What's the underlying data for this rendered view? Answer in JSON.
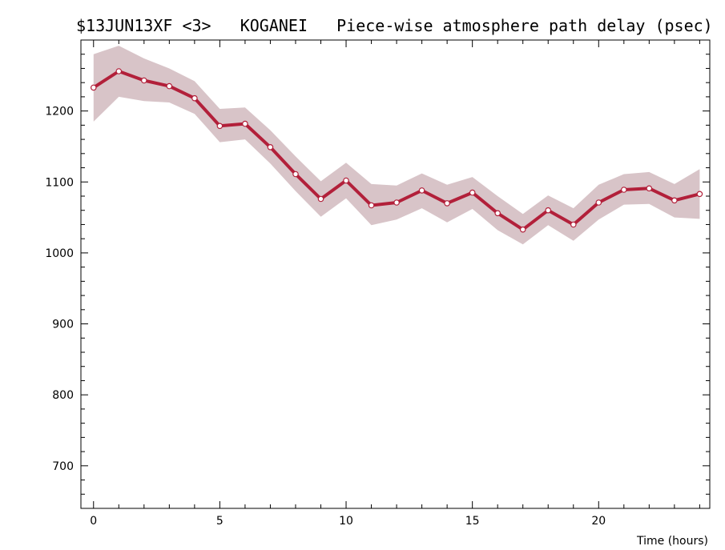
{
  "chart_data": {
    "type": "line",
    "title": "$13JUN13XF <3>   KOGANEI   Piece-wise atmosphere path delay (psec)",
    "xlabel": "Time (hours)",
    "ylabel": "",
    "xlim": [
      -0.5,
      24.4
    ],
    "ylim": [
      640,
      1300
    ],
    "x_ticks": [
      0,
      5,
      10,
      15,
      20
    ],
    "y_ticks": [
      700,
      800,
      900,
      1000,
      1100,
      1200
    ],
    "grid": false,
    "colors": {
      "line": "#b2203a",
      "band": "#d8c4c8",
      "marker_fill": "#ffffff",
      "axis": "#000000"
    },
    "series": [
      {
        "x": [
          0,
          1,
          2,
          3,
          4,
          5,
          6,
          7,
          8,
          9,
          10,
          11,
          12,
          13,
          14,
          15,
          16,
          17,
          18,
          19,
          20,
          21,
          22,
          23,
          24
        ],
        "y": [
          1233,
          1256,
          1243,
          1235,
          1218,
          1179,
          1182,
          1149,
          1111,
          1076,
          1102,
          1067,
          1071,
          1088,
          1070,
          1085,
          1056,
          1033,
          1060,
          1040,
          1071,
          1089,
          1091,
          1074,
          1083
        ],
        "upper": [
          1280,
          1292,
          1274,
          1260,
          1242,
          1203,
          1205,
          1173,
          1136,
          1101,
          1127,
          1097,
          1095,
          1112,
          1096,
          1107,
          1080,
          1055,
          1081,
          1063,
          1096,
          1111,
          1114,
          1097,
          1118
        ],
        "lower": [
          1185,
          1220,
          1214,
          1212,
          1196,
          1156,
          1160,
          1126,
          1087,
          1051,
          1077,
          1039,
          1047,
          1063,
          1043,
          1062,
          1032,
          1012,
          1039,
          1017,
          1047,
          1068,
          1069,
          1050,
          1048
        ]
      }
    ]
  }
}
